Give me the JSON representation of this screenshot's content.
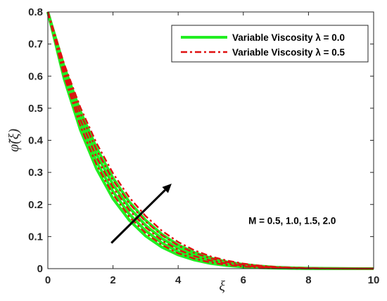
{
  "chart_data": {
    "type": "line",
    "xlabel": "ξ",
    "ylabel": "φ̃(ξ)",
    "xlim": [
      0,
      10
    ],
    "ylim": [
      0,
      0.8
    ],
    "xticks": [
      "0",
      "2",
      "4",
      "6",
      "8",
      "10"
    ],
    "yticks": [
      "0",
      "0.1",
      "0.2",
      "0.3",
      "0.4",
      "0.5",
      "0.6",
      "0.7",
      "0.8"
    ],
    "grid": false,
    "legend_position": "top-right",
    "x": [
      0,
      0.5,
      1,
      1.5,
      2,
      2.5,
      3,
      3.5,
      4,
      4.5,
      5,
      5.5,
      6,
      6.5,
      7,
      7.5,
      8,
      8.5,
      9,
      9.5,
      10
    ],
    "series": [
      {
        "name": "Variable Viscosity λ = 0.0",
        "group": "lambda0",
        "M": 0.5,
        "color": "#22ee22",
        "style": "solid",
        "values": [
          0.8,
          0.592,
          0.432,
          0.31,
          0.218,
          0.151,
          0.102,
          0.067,
          0.043,
          0.027,
          0.016,
          0.0095,
          0.0055,
          0.003,
          0.0017,
          0.0009,
          0.0005,
          0.0002,
          0.0001,
          0,
          0
        ]
      },
      {
        "group": "lambda0",
        "M": 1.0,
        "color": "#22ee22",
        "style": "solid",
        "values": [
          0.8,
          0.605,
          0.452,
          0.332,
          0.24,
          0.17,
          0.118,
          0.08,
          0.053,
          0.034,
          0.021,
          0.013,
          0.0075,
          0.0042,
          0.0023,
          0.0012,
          0.0006,
          0.0003,
          0.0001,
          0,
          0
        ]
      },
      {
        "group": "lambda0",
        "M": 1.5,
        "color": "#22ee22",
        "style": "solid",
        "values": [
          0.8,
          0.618,
          0.472,
          0.355,
          0.262,
          0.19,
          0.135,
          0.094,
          0.064,
          0.042,
          0.027,
          0.017,
          0.0102,
          0.006,
          0.0034,
          0.0018,
          0.0009,
          0.0004,
          0.0002,
          0.0001,
          0
        ]
      },
      {
        "group": "lambda0",
        "M": 2.0,
        "color": "#22ee22",
        "style": "solid",
        "values": [
          0.8,
          0.63,
          0.49,
          0.375,
          0.282,
          0.208,
          0.151,
          0.107,
          0.074,
          0.05,
          0.033,
          0.021,
          0.0132,
          0.0079,
          0.0045,
          0.0025,
          0.0013,
          0.0006,
          0.0003,
          0.0001,
          0
        ]
      },
      {
        "name": "Variable Viscosity λ = 0.5",
        "group": "lambda05",
        "M": 0.5,
        "color": "#e01010",
        "style": "dashdot",
        "values": [
          0.8,
          0.6,
          0.444,
          0.323,
          0.231,
          0.162,
          0.111,
          0.074,
          0.048,
          0.031,
          0.019,
          0.0115,
          0.0067,
          0.0037,
          0.002,
          0.001,
          0.0005,
          0.0002,
          0.0001,
          0,
          0
        ]
      },
      {
        "group": "lambda05",
        "M": 1.0,
        "color": "#e01010",
        "style": "dashdot",
        "values": [
          0.8,
          0.613,
          0.464,
          0.346,
          0.253,
          0.182,
          0.129,
          0.088,
          0.059,
          0.039,
          0.025,
          0.0155,
          0.0093,
          0.0053,
          0.0029,
          0.0015,
          0.0008,
          0.0004,
          0.0002,
          0,
          0
        ]
      },
      {
        "group": "lambda05",
        "M": 1.5,
        "color": "#e01010",
        "style": "dashdot",
        "values": [
          0.8,
          0.626,
          0.484,
          0.369,
          0.276,
          0.203,
          0.147,
          0.104,
          0.072,
          0.049,
          0.032,
          0.0205,
          0.0125,
          0.0073,
          0.0041,
          0.0022,
          0.0011,
          0.0005,
          0.0002,
          0.0001,
          0
        ]
      },
      {
        "group": "lambda05",
        "M": 2.0,
        "color": "#e01010",
        "style": "dashdot",
        "values": [
          0.8,
          0.638,
          0.502,
          0.39,
          0.297,
          0.222,
          0.164,
          0.118,
          0.083,
          0.057,
          0.038,
          0.025,
          0.0157,
          0.0094,
          0.0054,
          0.003,
          0.0016,
          0.0008,
          0.0004,
          0.0001,
          0
        ]
      }
    ],
    "annotations": [
      {
        "text": "M = 0.5, 1.0, 1.5, 2.0",
        "x": 7.5,
        "y": 0.15
      },
      {
        "type": "arrow",
        "from": [
          1.95,
          0.08
        ],
        "to": [
          3.8,
          0.265
        ],
        "color": "#000000"
      }
    ]
  }
}
